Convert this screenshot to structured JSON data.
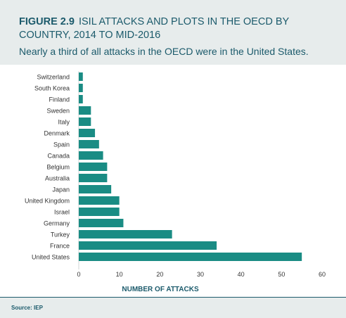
{
  "header": {
    "figure_label": "FIGURE 2.9",
    "title": "ISIL ATTACKS AND PLOTS IN THE OECD BY COUNTRY, 2014 TO MID-2016",
    "subtitle": "Nearly a third of all attacks in the OECD were in the United States."
  },
  "footer": {
    "source": "Source: IEP"
  },
  "colors": {
    "bar": "#1a8c84",
    "header_bg": "#e7ecec",
    "title": "#1b5a6b",
    "axis_text": "#333333"
  },
  "chart_data": {
    "type": "bar",
    "orientation": "horizontal",
    "categories": [
      "Switzerland",
      "South Korea",
      "Finland",
      "Sweden",
      "Italy",
      "Denmark",
      "Spain",
      "Canada",
      "Belgium",
      "Australia",
      "Japan",
      "United Kingdom",
      "Israel",
      "Germany",
      "Turkey",
      "France",
      "United States"
    ],
    "values": [
      1,
      1,
      1,
      3,
      3,
      4,
      5,
      6,
      7,
      7,
      8,
      10,
      10,
      11,
      23,
      34,
      55
    ],
    "xlabel": "NUMBER OF ATTACKS",
    "ylabel": "",
    "xlim": [
      0,
      60
    ],
    "xticks": [
      0,
      10,
      20,
      30,
      40,
      50,
      60
    ],
    "grid": false,
    "legend": "none"
  }
}
